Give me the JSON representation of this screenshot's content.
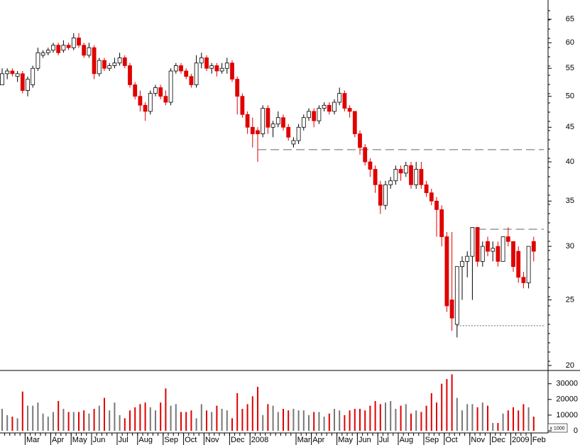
{
  "chart_data": {
    "type": "candlestick",
    "log_scale": true,
    "up_color": "#ffffff",
    "down_color": "#e00000",
    "volume_up_color": "#777777",
    "volume_down_color": "#e00000",
    "ylim": [
      19.66,
      69.4
    ],
    "yticks": [
      20,
      25,
      30,
      35,
      40,
      45,
      50,
      55,
      60,
      65
    ],
    "volume_ylim": [
      0,
      38000
    ],
    "volume_yticks": [
      0,
      10000,
      20000,
      30000
    ],
    "volume_unit_label": "x 1000",
    "reference_lines": [
      {
        "value": 41.7,
        "start": 50,
        "style": "dashed"
      },
      {
        "value": 31.8,
        "start": 93,
        "style": "dashed"
      },
      {
        "value": 22.9,
        "start": 89,
        "style": "dotted"
      }
    ],
    "categories": [
      null,
      null,
      null,
      null,
      null,
      "Mar",
      null,
      null,
      null,
      null,
      "Apr",
      null,
      null,
      null,
      "May",
      null,
      null,
      null,
      "Jun",
      null,
      null,
      null,
      null,
      "Jul",
      null,
      null,
      null,
      "Aug",
      null,
      null,
      null,
      null,
      "Sep",
      null,
      null,
      null,
      "Oct",
      null,
      null,
      null,
      "Nov",
      null,
      null,
      null,
      null,
      "Dec",
      null,
      null,
      null,
      "2008",
      null,
      null,
      null,
      null,
      null,
      null,
      null,
      null,
      "Mar",
      null,
      null,
      "Apr",
      null,
      null,
      null,
      null,
      "May",
      null,
      null,
      null,
      "Jun",
      null,
      null,
      null,
      "Jul",
      null,
      null,
      null,
      "Aug",
      null,
      null,
      null,
      null,
      "Sep",
      null,
      null,
      null,
      "Oct",
      null,
      null,
      null,
      null,
      "Nov",
      null,
      null,
      null,
      "Dec",
      null,
      null,
      null,
      "2009",
      null,
      null,
      null,
      "Feb"
    ],
    "ohlc": [
      [
        52,
        55,
        52,
        54
      ],
      [
        54,
        55,
        53,
        54.5
      ],
      [
        54.5,
        55,
        53.5,
        54
      ],
      [
        53.5,
        54.5,
        52.5,
        54
      ],
      [
        54,
        54.5,
        50.5,
        51
      ],
      [
        51,
        53.5,
        50,
        53
      ],
      [
        52,
        55.5,
        51.5,
        55
      ],
      [
        55,
        59,
        54.5,
        58
      ],
      [
        57.5,
        58.5,
        57,
        58
      ],
      [
        58,
        59,
        57.5,
        58.5
      ],
      [
        58.5,
        60,
        58,
        59.5
      ],
      [
        59.5,
        60,
        57.5,
        58
      ],
      [
        58.5,
        60.5,
        58,
        59.5
      ],
      [
        59.5,
        60,
        58.5,
        59
      ],
      [
        59,
        62,
        58.5,
        61
      ],
      [
        61,
        62,
        59,
        59.5
      ],
      [
        59.5,
        60,
        57,
        57.5
      ],
      [
        57.5,
        60,
        57,
        59
      ],
      [
        59,
        59.5,
        53,
        54
      ],
      [
        54,
        57,
        53.5,
        56.5
      ],
      [
        56.5,
        57,
        54.5,
        55
      ],
      [
        55,
        56,
        54.5,
        55.5
      ],
      [
        55.5,
        57,
        55,
        56
      ],
      [
        56,
        58,
        55.5,
        57
      ],
      [
        57,
        57.5,
        55,
        55.5
      ],
      [
        55.5,
        56,
        51.5,
        52
      ],
      [
        52,
        52.5,
        49.5,
        50
      ],
      [
        50,
        51,
        47.5,
        48.5
      ],
      [
        48.5,
        49,
        46,
        47.5
      ],
      [
        47.5,
        51,
        47,
        50.5
      ],
      [
        50.5,
        52,
        50,
        51.5
      ],
      [
        51.5,
        52,
        49.5,
        50
      ],
      [
        50,
        51,
        48.5,
        49
      ],
      [
        49,
        55,
        48.5,
        54.5
      ],
      [
        54.5,
        56,
        54,
        55.5
      ],
      [
        55.5,
        56,
        54,
        54.5
      ],
      [
        54.5,
        55,
        53,
        53.5
      ],
      [
        53.5,
        54,
        51.5,
        52
      ],
      [
        52,
        57.5,
        51.5,
        56
      ],
      [
        56,
        58,
        55,
        57
      ],
      [
        57,
        57.5,
        54.5,
        55
      ],
      [
        55,
        56,
        54,
        55.5
      ],
      [
        55.5,
        56,
        53.5,
        54.5
      ],
      [
        54.5,
        56,
        54,
        55
      ],
      [
        55,
        57,
        54,
        56
      ],
      [
        56,
        56.5,
        52.5,
        53
      ],
      [
        53,
        53.5,
        47,
        50
      ],
      [
        50,
        50.5,
        46.5,
        47
      ],
      [
        47,
        47.5,
        44,
        45
      ],
      [
        45,
        46.5,
        42,
        44
      ],
      [
        44.5,
        45,
        40,
        44
      ],
      [
        44,
        48.5,
        43.5,
        48
      ],
      [
        48,
        48.5,
        44,
        45
      ],
      [
        45,
        46,
        43.5,
        45.5
      ],
      [
        45.5,
        47.5,
        45,
        46.5
      ],
      [
        46.5,
        47,
        44.5,
        45
      ],
      [
        45,
        45.5,
        43,
        43.5
      ],
      [
        42.5,
        43.5,
        42,
        43
      ],
      [
        43,
        45.5,
        42.5,
        45
      ],
      [
        45,
        47,
        44.5,
        46.5
      ],
      [
        46.5,
        48,
        46,
        47.5
      ],
      [
        47.5,
        48,
        45,
        46
      ],
      [
        46,
        48.5,
        45.5,
        48
      ],
      [
        48,
        49,
        47.5,
        48.5
      ],
      [
        48.5,
        49,
        47,
        47.5
      ],
      [
        47.5,
        49.5,
        47,
        49
      ],
      [
        49,
        51.5,
        48.5,
        50.5
      ],
      [
        50.5,
        51,
        47.5,
        48
      ],
      [
        48,
        48.5,
        46.5,
        47.5
      ],
      [
        47.5,
        47.5,
        43.5,
        44
      ],
      [
        44,
        44.5,
        41,
        42
      ],
      [
        42,
        42.5,
        39.5,
        40
      ],
      [
        40,
        40.5,
        38,
        39
      ],
      [
        39,
        39.5,
        36,
        37
      ],
      [
        37,
        37.5,
        33.5,
        34.5
      ],
      [
        34.5,
        37.5,
        34,
        37
      ],
      [
        37,
        38,
        36.5,
        37.5
      ],
      [
        37.5,
        39.5,
        37,
        39
      ],
      [
        39,
        39.5,
        37.5,
        38.5
      ],
      [
        38.5,
        40,
        38,
        39.5
      ],
      [
        39.5,
        40,
        36.5,
        37
      ],
      [
        37,
        40,
        36.5,
        39
      ],
      [
        39,
        40,
        36.5,
        37
      ],
      [
        37,
        37.5,
        35.5,
        36
      ],
      [
        36,
        36.5,
        34.5,
        35
      ],
      [
        35,
        35.5,
        31,
        34
      ],
      [
        34,
        34.5,
        30,
        31
      ],
      [
        31,
        31.5,
        24,
        24.5
      ],
      [
        25,
        31.5,
        22.5,
        23.5
      ],
      [
        23,
        28,
        22,
        28
      ],
      [
        28,
        29,
        25,
        28.5
      ],
      [
        28.5,
        29.5,
        27,
        29
      ],
      [
        29,
        32,
        25,
        32
      ],
      [
        32,
        32,
        28,
        28.5
      ],
      [
        28.5,
        30.5,
        28,
        30
      ],
      [
        30.5,
        31,
        29,
        29.5
      ],
      [
        29.5,
        30.5,
        28.5,
        29.8
      ],
      [
        30,
        30.5,
        28,
        28.5
      ],
      [
        28.5,
        31,
        28.5,
        31
      ],
      [
        31,
        32,
        30,
        30.5
      ],
      [
        30.5,
        30.5,
        27.5,
        28
      ],
      [
        29.5,
        30,
        26.5,
        27
      ],
      [
        27,
        27.5,
        26,
        26.5
      ],
      [
        26.5,
        30,
        26,
        30
      ],
      [
        30.5,
        31,
        28.5,
        29.5
      ]
    ],
    "volume": [
      14000,
      10000,
      9000,
      8000,
      25000,
      16000,
      16000,
      18000,
      11000,
      9000,
      12000,
      19000,
      14000,
      12000,
      12000,
      12000,
      13000,
      11000,
      14000,
      16000,
      21000,
      13000,
      18000,
      10000,
      8000,
      13000,
      15000,
      17000,
      18000,
      15000,
      13000,
      18000,
      27000,
      16000,
      17000,
      12000,
      12000,
      13000,
      8000,
      17000,
      13000,
      12000,
      16000,
      14000,
      13000,
      8000,
      24000,
      14000,
      17000,
      22000,
      28000,
      10000,
      17000,
      16000,
      12000,
      14000,
      13000,
      14000,
      13000,
      13000,
      10000,
      12000,
      12000,
      9000,
      11000,
      14000,
      13000,
      10000,
      13000,
      14000,
      14000,
      13000,
      16000,
      19000,
      17000,
      18000,
      19000,
      14000,
      16000,
      17000,
      11000,
      13000,
      12000,
      16000,
      24000,
      18000,
      30000,
      33000,
      36000,
      21000,
      13000,
      17000,
      17000,
      15000,
      18000,
      16000,
      5000,
      5000,
      11000,
      13000,
      15000,
      13000,
      17000,
      15000,
      9000
    ]
  }
}
